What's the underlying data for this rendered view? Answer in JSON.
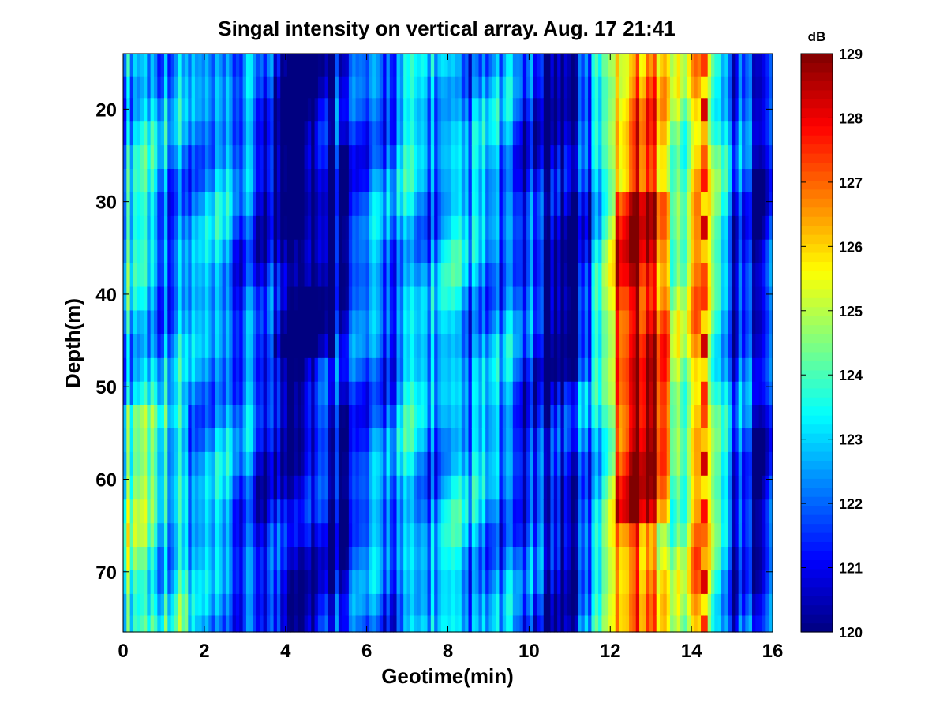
{
  "chart_data": {
    "type": "heatmap",
    "title": "Singal intensity on vertical array. Aug. 17 21:41",
    "xlabel": "Geotime(min)",
    "ylabel": "Depth(m)",
    "xlim": [
      0,
      16
    ],
    "ylim": [
      14,
      76.5
    ],
    "y_reversed": true,
    "x_ticks": [
      "0",
      "2",
      "4",
      "6",
      "8",
      "10",
      "12",
      "14",
      "16"
    ],
    "y_ticks": [
      "20",
      "30",
      "40",
      "50",
      "60",
      "70"
    ],
    "colorbar": {
      "label": "dB",
      "range": [
        120,
        129
      ],
      "ticks": [
        "120",
        "121",
        "122",
        "123",
        "124",
        "125",
        "126",
        "127",
        "128",
        "129"
      ],
      "colormap": "jet"
    },
    "depths_m": [
      15.4,
      17.5,
      20.1,
      22.6,
      25.2,
      27.7,
      30.3,
      32.8,
      35.4,
      37.9,
      40.5,
      43.0,
      45.6,
      48.2,
      50.7,
      53.2,
      55.8,
      58.3,
      60.9,
      63.5,
      66.0,
      68.6,
      71.1,
      73.7,
      75.8
    ],
    "intensity_profile": [
      {
        "time_min": 0.0,
        "db": 123.0
      },
      {
        "time_min": 0.5,
        "db": 123.6
      },
      {
        "time_min": 1.0,
        "db": 122.5
      },
      {
        "time_min": 2.0,
        "db": 122.2
      },
      {
        "time_min": 3.0,
        "db": 121.8
      },
      {
        "time_min": 4.0,
        "db": 121.0
      },
      {
        "time_min": 5.0,
        "db": 121.0
      },
      {
        "time_min": 6.0,
        "db": 121.6
      },
      {
        "time_min": 7.0,
        "db": 122.6
      },
      {
        "time_min": 8.0,
        "db": 122.4
      },
      {
        "time_min": 9.0,
        "db": 122.3
      },
      {
        "time_min": 10.0,
        "db": 121.4
      },
      {
        "time_min": 11.0,
        "db": 120.8
      },
      {
        "time_min": 11.6,
        "db": 122.5
      },
      {
        "time_min": 12.0,
        "db": 125.5
      },
      {
        "time_min": 12.4,
        "db": 127.8
      },
      {
        "time_min": 12.8,
        "db": 128.2
      },
      {
        "time_min": 13.2,
        "db": 127.0
      },
      {
        "time_min": 13.7,
        "db": 124.0
      },
      {
        "time_min": 14.3,
        "db": 127.0
      },
      {
        "time_min": 15.0,
        "db": 121.5
      },
      {
        "time_min": 16.0,
        "db": 121.2
      }
    ]
  }
}
